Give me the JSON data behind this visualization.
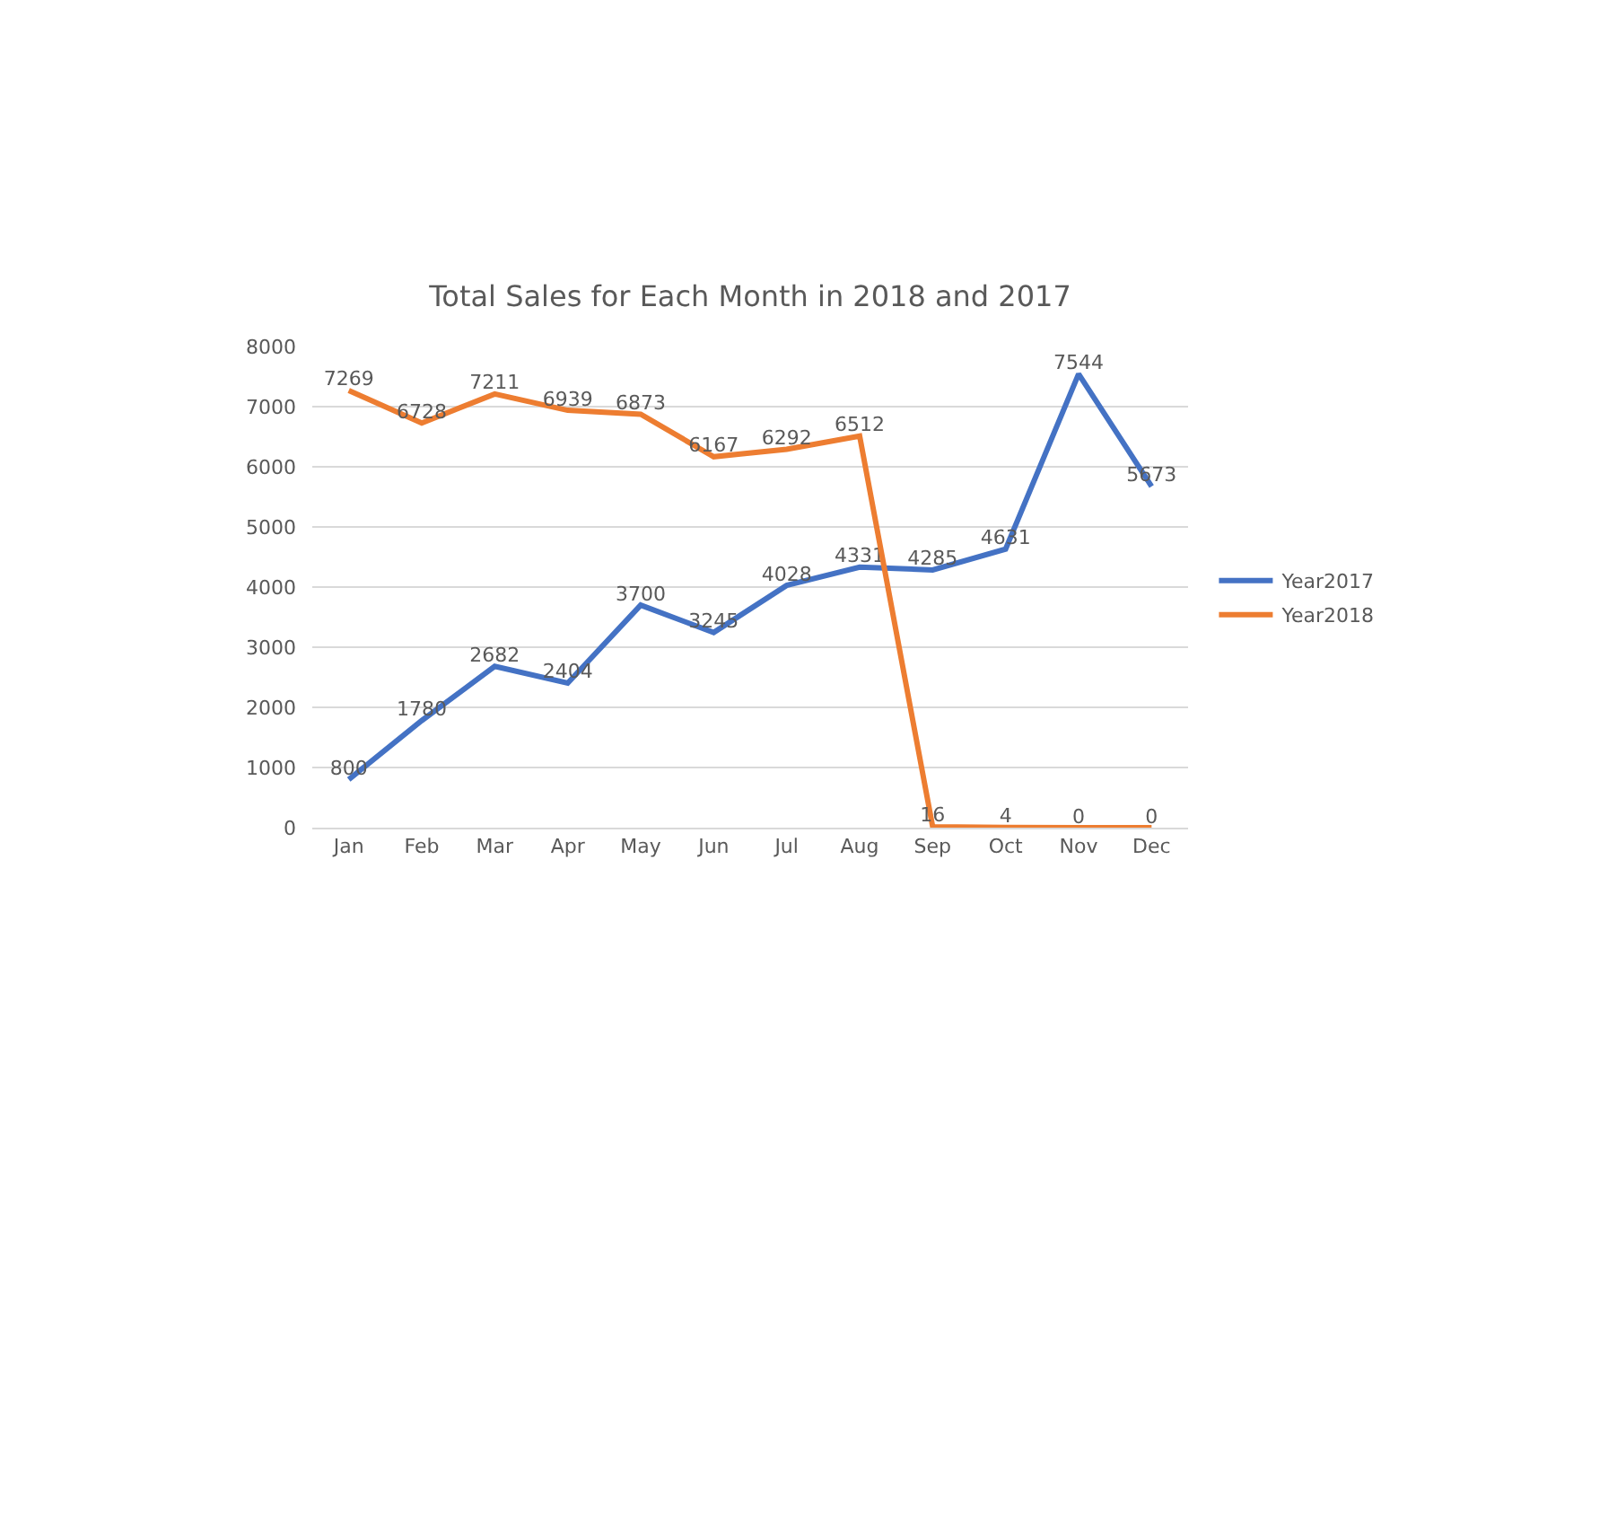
{
  "chart_data": {
    "type": "line",
    "title": "Total Sales for Each Month in 2018 and 2017",
    "categories": [
      "Jan",
      "Feb",
      "Mar",
      "Apr",
      "May",
      "Jun",
      "Jul",
      "Aug",
      "Sep",
      "Oct",
      "Nov",
      "Dec"
    ],
    "series": [
      {
        "name": "Year2017",
        "color": "#4472c4",
        "values": [
          800,
          1780,
          2682,
          2404,
          3700,
          3245,
          4028,
          4331,
          4285,
          4631,
          7544,
          5673
        ]
      },
      {
        "name": "Year2018",
        "color": "#ed7d31",
        "values": [
          7269,
          6728,
          7211,
          6939,
          6873,
          6167,
          6292,
          6512,
          16,
          4,
          0,
          0
        ]
      }
    ],
    "ylim": [
      0,
      8000
    ],
    "yticks": [
      0,
      1000,
      2000,
      3000,
      4000,
      5000,
      6000,
      7000,
      8000
    ],
    "grid": "y",
    "legend": "right",
    "data_labels": true,
    "marker": "none",
    "line_style": "solid"
  }
}
